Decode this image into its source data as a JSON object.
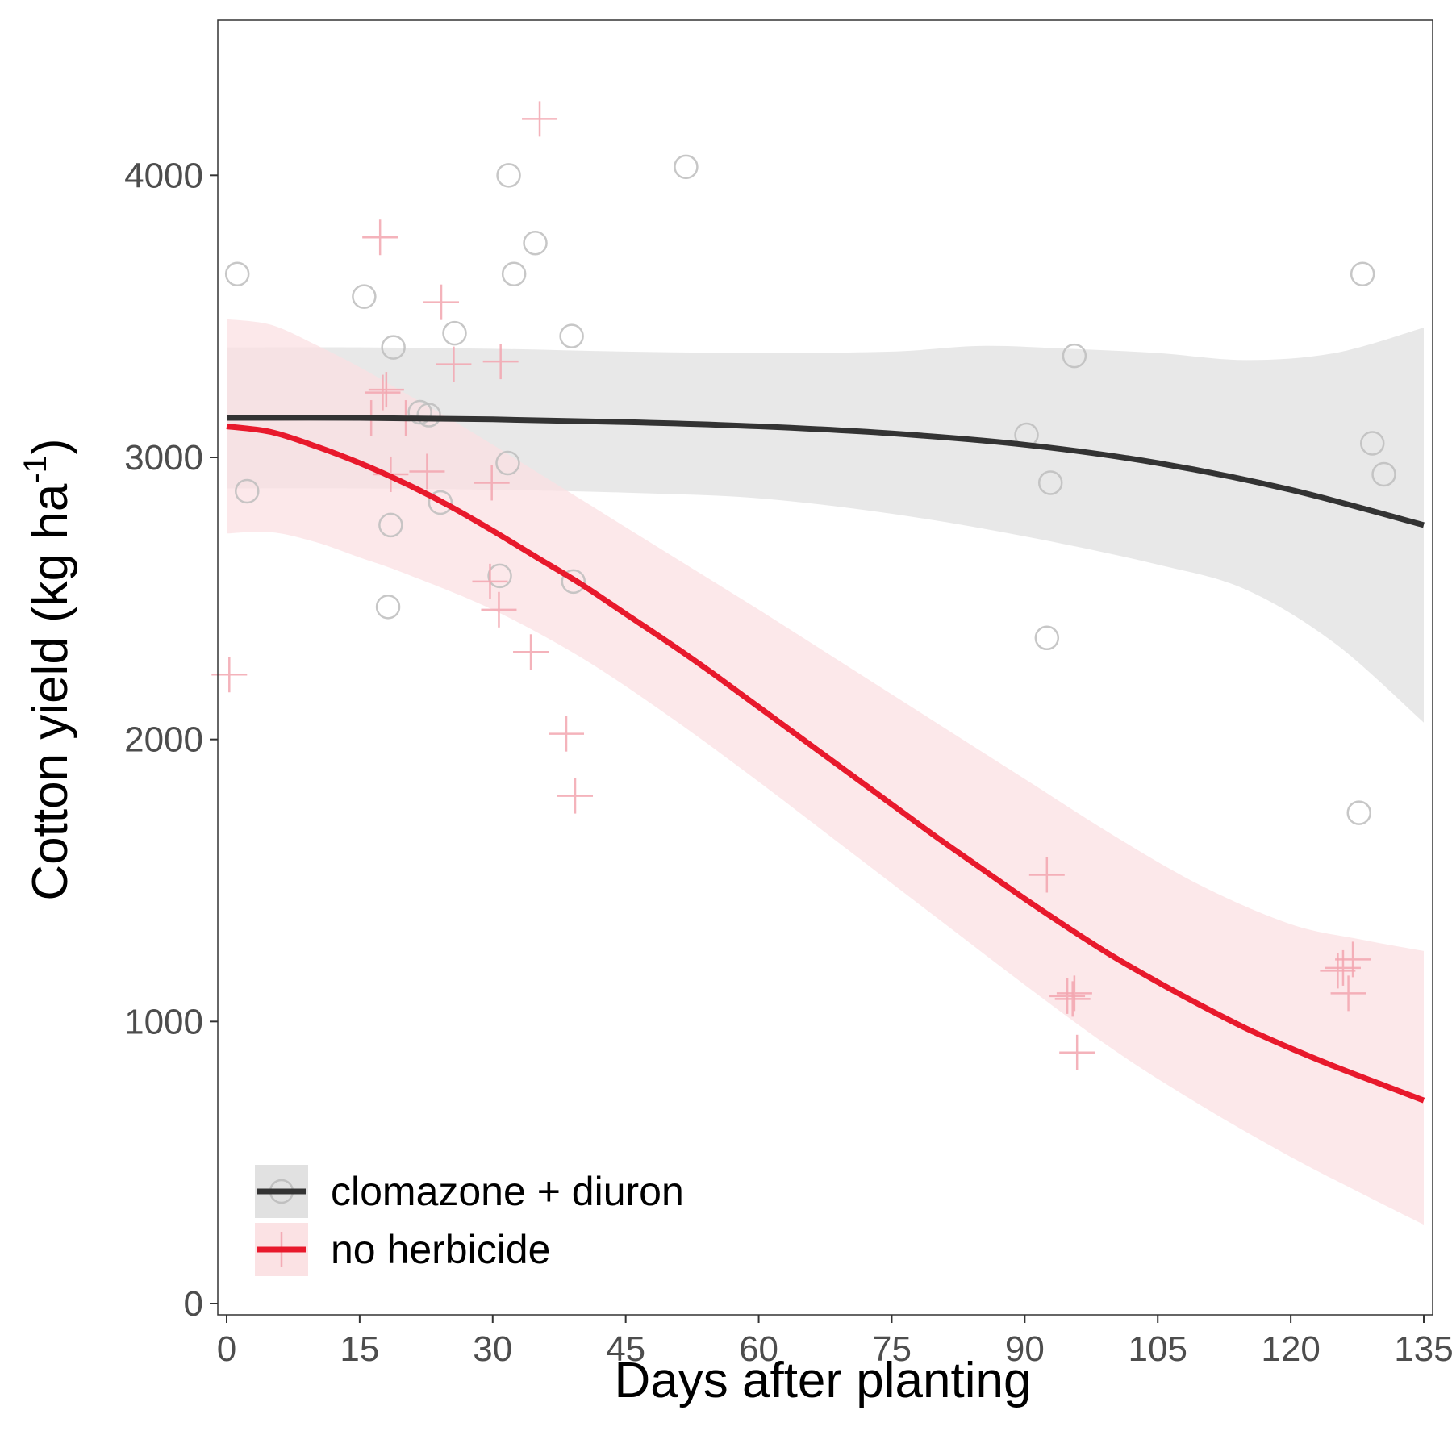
{
  "chart_data": {
    "type": "scatter",
    "xlabel": "Days after planting",
    "ylabel": "Cotton yield (kg ha",
    "ylabel_unit_exponent": "-1",
    "ylabel_close": ")",
    "xlim": [
      -1,
      136
    ],
    "ylim": [
      -40,
      4550
    ],
    "x_ticks": [
      0,
      15,
      30,
      45,
      60,
      75,
      90,
      105,
      120,
      135
    ],
    "y_ticks": [
      0,
      1000,
      2000,
      3000,
      4000
    ],
    "grid": false,
    "legend_position": "bottom-left",
    "colors": {
      "clomazone": "#333333",
      "clomazone_band": "#d9d9d9",
      "clomazone_points": "#bdbdbd",
      "none": "#e8192c",
      "none_band": "#fbe0e3",
      "none_points": "#f3a6b0"
    },
    "series": [
      {
        "name": "clomazone + diuron",
        "marker": "circle",
        "points": [
          [
            1.2,
            3650
          ],
          [
            2.3,
            2880
          ],
          [
            15.5,
            3570
          ],
          [
            18.2,
            2470
          ],
          [
            18.5,
            2760
          ],
          [
            18.8,
            3390
          ],
          [
            21.8,
            3160
          ],
          [
            22.8,
            3150
          ],
          [
            24.1,
            2840
          ],
          [
            25.7,
            3440
          ],
          [
            30.8,
            2580
          ],
          [
            31.7,
            2980
          ],
          [
            31.8,
            4000
          ],
          [
            32.4,
            3650
          ],
          [
            34.8,
            3760
          ],
          [
            38.9,
            3430
          ],
          [
            39.1,
            2560
          ],
          [
            51.8,
            4030
          ],
          [
            90.2,
            3080
          ],
          [
            92.5,
            2360
          ],
          [
            92.9,
            2910
          ],
          [
            95.6,
            3360
          ],
          [
            127.7,
            1740
          ],
          [
            128.1,
            3650
          ],
          [
            129.2,
            3050
          ],
          [
            130.5,
            2940
          ]
        ],
        "fit": [
          [
            0,
            3140
          ],
          [
            15,
            3140
          ],
          [
            30,
            3135
          ],
          [
            45,
            3125
          ],
          [
            60,
            3110
          ],
          [
            75,
            3085
          ],
          [
            90,
            3045
          ],
          [
            105,
            2980
          ],
          [
            120,
            2885
          ],
          [
            135,
            2760
          ]
        ],
        "band_upper": [
          [
            0,
            3390
          ],
          [
            15,
            3390
          ],
          [
            30,
            3385
          ],
          [
            45,
            3375
          ],
          [
            60,
            3370
          ],
          [
            75,
            3375
          ],
          [
            85,
            3395
          ],
          [
            95,
            3385
          ],
          [
            105,
            3370
          ],
          [
            115,
            3345
          ],
          [
            125,
            3370
          ],
          [
            135,
            3460
          ]
        ],
        "band_lower": [
          [
            0,
            2890
          ],
          [
            15,
            2890
          ],
          [
            30,
            2885
          ],
          [
            45,
            2875
          ],
          [
            60,
            2855
          ],
          [
            75,
            2800
          ],
          [
            90,
            2720
          ],
          [
            105,
            2620
          ],
          [
            115,
            2530
          ],
          [
            125,
            2340
          ],
          [
            135,
            2060
          ]
        ]
      },
      {
        "name": "no herbicide",
        "marker": "plus",
        "points": [
          [
            0.3,
            2230
          ],
          [
            16.3,
            3140
          ],
          [
            17.3,
            3780
          ],
          [
            17.6,
            3230
          ],
          [
            18.0,
            3240
          ],
          [
            18.5,
            2940
          ],
          [
            20.2,
            3140
          ],
          [
            22.6,
            2950
          ],
          [
            24.2,
            3550
          ],
          [
            25.6,
            3330
          ],
          [
            29.7,
            2560
          ],
          [
            29.9,
            2910
          ],
          [
            30.7,
            2460
          ],
          [
            30.9,
            3340
          ],
          [
            34.3,
            2310
          ],
          [
            35.3,
            4200
          ],
          [
            38.3,
            2020
          ],
          [
            39.3,
            1800
          ],
          [
            92.5,
            1520
          ],
          [
            94.8,
            1090
          ],
          [
            95.4,
            1080
          ],
          [
            95.6,
            1100
          ],
          [
            95.9,
            890
          ],
          [
            125.3,
            1180
          ],
          [
            125.9,
            1190
          ],
          [
            126.5,
            1100
          ],
          [
            127.0,
            1220
          ]
        ],
        "fit": [
          [
            0,
            3110
          ],
          [
            5,
            3090
          ],
          [
            10,
            3040
          ],
          [
            15,
            2980
          ],
          [
            20,
            2910
          ],
          [
            25,
            2830
          ],
          [
            30,
            2740
          ],
          [
            35,
            2645
          ],
          [
            40,
            2550
          ],
          [
            45,
            2445
          ],
          [
            50,
            2340
          ],
          [
            55,
            2230
          ],
          [
            60,
            2115
          ],
          [
            65,
            2000
          ],
          [
            70,
            1885
          ],
          [
            75,
            1770
          ],
          [
            80,
            1655
          ],
          [
            85,
            1545
          ],
          [
            90,
            1435
          ],
          [
            95,
            1330
          ],
          [
            100,
            1230
          ],
          [
            105,
            1140
          ],
          [
            110,
            1055
          ],
          [
            115,
            975
          ],
          [
            120,
            905
          ],
          [
            125,
            840
          ],
          [
            130,
            780
          ],
          [
            135,
            720
          ]
        ],
        "band_upper": [
          [
            0,
            3490
          ],
          [
            5,
            3470
          ],
          [
            10,
            3400
          ],
          [
            15,
            3320
          ],
          [
            20,
            3230
          ],
          [
            25,
            3140
          ],
          [
            30,
            3045
          ],
          [
            40,
            2850
          ],
          [
            50,
            2655
          ],
          [
            60,
            2460
          ],
          [
            70,
            2260
          ],
          [
            80,
            2060
          ],
          [
            90,
            1860
          ],
          [
            100,
            1660
          ],
          [
            110,
            1480
          ],
          [
            120,
            1345
          ],
          [
            128,
            1290
          ],
          [
            135,
            1250
          ]
        ],
        "band_lower": [
          [
            0,
            2730
          ],
          [
            5,
            2735
          ],
          [
            10,
            2700
          ],
          [
            15,
            2645
          ],
          [
            20,
            2590
          ],
          [
            30,
            2460
          ],
          [
            40,
            2290
          ],
          [
            50,
            2080
          ],
          [
            60,
            1850
          ],
          [
            70,
            1610
          ],
          [
            80,
            1370
          ],
          [
            90,
            1130
          ],
          [
            100,
            900
          ],
          [
            110,
            700
          ],
          [
            120,
            520
          ],
          [
            128,
            390
          ],
          [
            135,
            280
          ]
        ]
      }
    ]
  }
}
